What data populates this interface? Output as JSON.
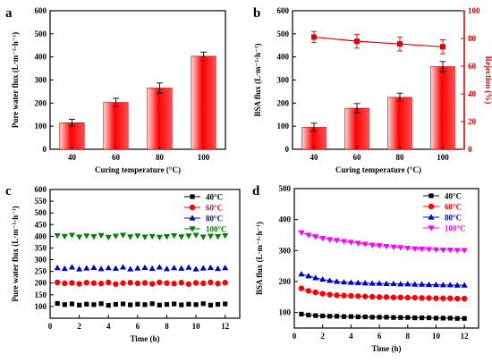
{
  "chart_data": [
    {
      "panel": "a",
      "type": "bar",
      "xlabel": "Curing temperature (°C)",
      "ylabel": "Pure water flux (L·m⁻²·h⁻¹)",
      "ylim": [
        0,
        600
      ],
      "yticks": [
        0,
        100,
        200,
        300,
        400,
        500,
        600
      ],
      "categories": [
        "40",
        "60",
        "80",
        "100"
      ],
      "values": [
        115,
        203,
        265,
        403
      ],
      "errors": [
        15,
        18,
        22,
        18
      ],
      "grid": false,
      "bar_color": "#ff0000"
    },
    {
      "panel": "b",
      "type": "bar",
      "xlabel": "Curing temperature (°C)",
      "ylabel": "BSA flux (L·m⁻²·h⁻¹)",
      "ylabel_right": "Rejection (%)",
      "ylim": [
        0,
        600
      ],
      "ylim_right": [
        0,
        100
      ],
      "yticks": [
        0,
        100,
        200,
        300,
        400,
        500,
        600
      ],
      "yticks_right": [
        0,
        20,
        40,
        60,
        80,
        100
      ],
      "categories": [
        "40",
        "60",
        "80",
        "100"
      ],
      "values": [
        95,
        178,
        225,
        358
      ],
      "errors": [
        18,
        20,
        18,
        22
      ],
      "line_series": {
        "values": [
          81,
          78,
          76,
          74
        ],
        "errors": [
          4,
          5,
          5,
          5
        ],
        "color": "#e00000"
      },
      "grid": false,
      "bar_color": "#ff0000"
    },
    {
      "panel": "c",
      "type": "scatter",
      "xlabel": "Time (h)",
      "ylabel": "Pure water flux (L·m⁻²·h⁻¹)",
      "xlim": [
        0,
        13
      ],
      "ylim": [
        50,
        600
      ],
      "xticks": [
        0,
        2,
        4,
        6,
        8,
        10,
        12
      ],
      "yticks": [
        100,
        150,
        200,
        250,
        300,
        350,
        400,
        450,
        500,
        550,
        600
      ],
      "x": [
        0.5,
        1,
        1.5,
        2,
        2.5,
        3,
        3.5,
        4,
        4.5,
        5,
        5.5,
        6,
        6.5,
        7,
        7.5,
        8,
        8.5,
        9,
        9.5,
        10,
        10.5,
        11,
        11.5,
        12
      ],
      "legend_position": "top-right",
      "series": [
        {
          "name": "40°C",
          "color": "#000000",
          "marker": "square",
          "values": [
            113,
            108,
            111,
            106,
            110,
            108,
            112,
            105,
            109,
            111,
            107,
            110,
            108,
            112,
            106,
            109,
            111,
            107,
            110,
            108,
            112,
            106,
            109,
            111
          ]
        },
        {
          "name": "60°C",
          "color": "#ff0000",
          "marker": "circle",
          "values": [
            203,
            199,
            201,
            197,
            202,
            200,
            198,
            203,
            196,
            200,
            202,
            199,
            201,
            197,
            203,
            200,
            198,
            202,
            196,
            201,
            199,
            203,
            198,
            202
          ]
        },
        {
          "name": "80°C",
          "color": "#0000cc",
          "marker": "triangle-up",
          "values": [
            265,
            262,
            268,
            260,
            264,
            266,
            261,
            265,
            263,
            268,
            260,
            264,
            266,
            262,
            268,
            261,
            265,
            263,
            267,
            260,
            264,
            266,
            262,
            265
          ]
        },
        {
          "name": "100°C",
          "color": "#008000",
          "marker": "triangle-down",
          "values": [
            403,
            400,
            405,
            397,
            402,
            399,
            404,
            396,
            401,
            405,
            398,
            402,
            397,
            400,
            396,
            399,
            403,
            398,
            402,
            405,
            397,
            401,
            399,
            403
          ]
        }
      ]
    },
    {
      "panel": "d",
      "type": "line",
      "xlabel": "Time (h)",
      "ylabel": "BSA flux (L·m⁻²·h⁻¹)",
      "xlim": [
        0,
        13
      ],
      "ylim": [
        50,
        500
      ],
      "xticks": [
        0,
        2,
        4,
        6,
        8,
        10,
        12
      ],
      "yticks": [
        100,
        200,
        300,
        400,
        500
      ],
      "x": [
        0.5,
        1,
        1.5,
        2,
        2.5,
        3,
        3.5,
        4,
        4.5,
        5,
        5.5,
        6,
        6.5,
        7,
        7.5,
        8,
        8.5,
        9,
        9.5,
        10,
        10.5,
        11,
        11.5,
        12
      ],
      "legend_position": "top-right",
      "series": [
        {
          "name": "40°C",
          "color": "#000000",
          "marker": "square",
          "values": [
            95,
            92,
            90,
            89,
            88,
            88,
            87,
            87,
            86,
            86,
            85,
            85,
            85,
            84,
            84,
            84,
            83,
            83,
            83,
            82,
            82,
            82,
            81,
            81
          ]
        },
        {
          "name": "60°C",
          "color": "#ff0000",
          "marker": "circle",
          "values": [
            178,
            170,
            165,
            161,
            158,
            156,
            155,
            154,
            153,
            152,
            151,
            150,
            150,
            149,
            149,
            148,
            148,
            147,
            147,
            146,
            146,
            146,
            145,
            145
          ]
        },
        {
          "name": "80°C",
          "color": "#0000cc",
          "marker": "triangle-up",
          "values": [
            224,
            218,
            212,
            207,
            203,
            200,
            198,
            197,
            196,
            195,
            194,
            194,
            193,
            193,
            192,
            192,
            191,
            191,
            190,
            190,
            189,
            189,
            188,
            188
          ]
        },
        {
          "name": "100°C",
          "color": "#ff00ff",
          "marker": "triangle-down",
          "values": [
            358,
            350,
            345,
            340,
            336,
            333,
            330,
            327,
            324,
            321,
            318,
            316,
            314,
            312,
            310,
            308,
            306,
            305,
            304,
            303,
            302,
            302,
            301,
            301
          ]
        }
      ]
    }
  ]
}
